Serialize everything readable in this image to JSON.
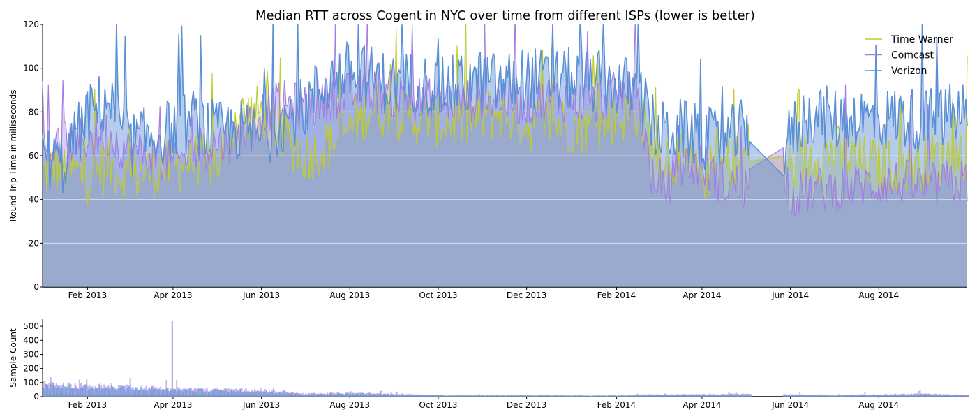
{
  "chart_data": [
    {
      "type": "area",
      "title": "Median RTT across Cogent in NYC over time from different ISPs (lower is better)",
      "xlabel": "",
      "ylabel": "Round Trip Time in milliseconds",
      "xlim": [
        "2013-01-01",
        "2014-10-01"
      ],
      "ylim": [
        0,
        120
      ],
      "x_ticks": [
        "Feb 2013",
        "Apr 2013",
        "Jun 2013",
        "Aug 2013",
        "Oct 2013",
        "Dec 2013",
        "Feb 2014",
        "Apr 2014",
        "Jun 2014",
        "Aug 2014"
      ],
      "y_ticks": [
        0,
        20,
        40,
        60,
        80,
        100,
        120
      ],
      "grid": true,
      "legend": "top-right",
      "gaps": [
        [
          "2014-05-04",
          "2014-05-27"
        ]
      ],
      "series": [
        {
          "name": "Time Warner",
          "color": "#bfcc2d",
          "x": [
            "2013-01-01",
            "2013-01-15",
            "2013-02-01",
            "2013-02-15",
            "2013-03-01",
            "2013-03-15",
            "2013-04-01",
            "2013-04-15",
            "2013-05-01",
            "2013-05-15",
            "2013-06-01",
            "2013-06-15",
            "2013-07-01",
            "2013-07-15",
            "2013-08-01",
            "2013-08-15",
            "2013-09-01",
            "2013-09-15",
            "2013-10-01",
            "2013-10-15",
            "2013-11-01",
            "2013-11-15",
            "2013-12-01",
            "2013-12-15",
            "2014-01-01",
            "2014-01-15",
            "2014-02-01",
            "2014-02-15",
            "2014-03-01",
            "2014-03-15",
            "2014-04-01",
            "2014-04-15",
            "2014-05-01",
            "2014-05-04",
            "2014-05-27",
            "2014-06-01",
            "2014-06-15",
            "2014-07-01",
            "2014-07-15",
            "2014-08-01",
            "2014-08-15",
            "2014-09-01",
            "2014-09-15",
            "2014-10-01"
          ],
          "values": [
            52,
            55,
            50,
            56,
            50,
            53,
            55,
            58,
            56,
            78,
            80,
            70,
            60,
            65,
            72,
            82,
            80,
            78,
            76,
            75,
            78,
            80,
            74,
            76,
            74,
            72,
            78,
            80,
            62,
            58,
            52,
            55,
            60,
            65,
            58,
            55,
            60,
            62,
            58,
            56,
            55,
            58,
            60,
            62
          ]
        },
        {
          "name": "Comcast",
          "color": "#a27fe0",
          "x": [
            "2013-01-01",
            "2013-01-15",
            "2013-02-01",
            "2013-02-15",
            "2013-03-01",
            "2013-03-15",
            "2013-04-01",
            "2013-04-15",
            "2013-05-01",
            "2013-05-15",
            "2013-06-01",
            "2013-06-15",
            "2013-07-01",
            "2013-07-15",
            "2013-08-01",
            "2013-08-15",
            "2013-09-01",
            "2013-09-15",
            "2013-10-01",
            "2013-10-15",
            "2013-11-01",
            "2013-11-15",
            "2013-12-01",
            "2013-12-15",
            "2014-01-01",
            "2014-01-15",
            "2014-02-01",
            "2014-02-15",
            "2014-03-01",
            "2014-03-15",
            "2014-04-01",
            "2014-04-15",
            "2014-05-01",
            "2014-05-04",
            "2014-05-27",
            "2014-06-01",
            "2014-06-15",
            "2014-07-01",
            "2014-07-15",
            "2014-08-01",
            "2014-08-15",
            "2014-09-01",
            "2014-09-15",
            "2014-10-01"
          ],
          "values": [
            62,
            66,
            68,
            70,
            62,
            60,
            56,
            62,
            66,
            68,
            80,
            84,
            82,
            86,
            88,
            90,
            88,
            86,
            86,
            85,
            87,
            86,
            84,
            86,
            86,
            84,
            88,
            88,
            38,
            55,
            56,
            48,
            46,
            48,
            58,
            42,
            44,
            45,
            46,
            47,
            48,
            46,
            47,
            48
          ]
        },
        {
          "name": "Verizon",
          "color": "#5b8fd6",
          "x": [
            "2013-01-01",
            "2013-01-15",
            "2013-02-01",
            "2013-02-15",
            "2013-03-01",
            "2013-03-15",
            "2013-04-01",
            "2013-04-15",
            "2013-05-01",
            "2013-05-15",
            "2013-06-01",
            "2013-06-15",
            "2013-07-01",
            "2013-07-15",
            "2013-08-01",
            "2013-08-15",
            "2013-09-01",
            "2013-09-15",
            "2013-10-01",
            "2013-10-15",
            "2013-11-01",
            "2013-11-15",
            "2013-12-01",
            "2013-12-15",
            "2014-01-01",
            "2014-01-15",
            "2014-02-01",
            "2014-02-15",
            "2014-03-01",
            "2014-03-15",
            "2014-04-01",
            "2014-04-15",
            "2014-05-01",
            "2014-05-04",
            "2014-05-27",
            "2014-06-01",
            "2014-06-15",
            "2014-07-01",
            "2014-07-15",
            "2014-08-01",
            "2014-08-15",
            "2014-09-01",
            "2014-09-15",
            "2014-10-01"
          ],
          "values": [
            60,
            56,
            78,
            86,
            66,
            68,
            72,
            76,
            70,
            72,
            68,
            76,
            82,
            94,
            98,
            96,
            92,
            94,
            90,
            92,
            94,
            92,
            96,
            94,
            95,
            94,
            92,
            90,
            70,
            72,
            68,
            66,
            72,
            74,
            55,
            70,
            80,
            76,
            78,
            76,
            78,
            76,
            78,
            80
          ]
        }
      ]
    },
    {
      "type": "bar",
      "title": "",
      "xlabel": "",
      "ylabel": "Sample Count",
      "xlim": [
        "2013-01-01",
        "2014-10-01"
      ],
      "ylim": [
        0,
        550
      ],
      "x_ticks": [
        "Feb 2013",
        "Apr 2013",
        "Jun 2013",
        "Aug 2013",
        "Oct 2013",
        "Dec 2013",
        "Feb 2014",
        "Apr 2014",
        "Jun 2014",
        "Aug 2014"
      ],
      "y_ticks": [
        0,
        100,
        200,
        300,
        400,
        500
      ],
      "grid": false,
      "gaps": [
        [
          "2014-05-04",
          "2014-05-27"
        ]
      ],
      "spike": {
        "x": "2013-03-31",
        "value": 535
      },
      "series": [
        {
          "name": "Time Warner",
          "color": "#bfcc2d",
          "x": [
            "2013-01-01",
            "2013-02-01",
            "2013-03-01",
            "2013-04-01",
            "2013-05-01",
            "2013-06-01",
            "2013-07-01",
            "2013-08-01",
            "2013-09-01",
            "2013-10-01",
            "2013-11-01",
            "2013-12-01",
            "2014-01-01",
            "2014-02-01",
            "2014-03-01",
            "2014-04-01",
            "2014-05-01",
            "2014-06-01",
            "2014-07-01",
            "2014-08-01",
            "2014-09-01",
            "2014-10-01"
          ],
          "values": [
            20,
            18,
            16,
            15,
            15,
            12,
            10,
            10,
            8,
            8,
            8,
            8,
            7,
            7,
            8,
            8,
            8,
            8,
            7,
            8,
            8,
            8
          ]
        },
        {
          "name": "Comcast",
          "color": "#a27fe0",
          "x": [
            "2013-01-01",
            "2013-02-01",
            "2013-03-01",
            "2013-04-01",
            "2013-05-01",
            "2013-06-01",
            "2013-07-01",
            "2013-08-01",
            "2013-09-01",
            "2013-10-01",
            "2013-11-01",
            "2013-12-01",
            "2014-01-01",
            "2014-02-01",
            "2014-03-01",
            "2014-04-01",
            "2014-05-01",
            "2014-06-01",
            "2014-07-01",
            "2014-08-01",
            "2014-09-01",
            "2014-10-01"
          ],
          "values": [
            90,
            75,
            70,
            55,
            50,
            45,
            20,
            25,
            20,
            10,
            8,
            10,
            8,
            8,
            15,
            15,
            20,
            15,
            10,
            15,
            20,
            12
          ]
        },
        {
          "name": "Verizon",
          "color": "#5b8fd6",
          "x": [
            "2013-01-01",
            "2013-02-01",
            "2013-03-01",
            "2013-04-01",
            "2013-05-01",
            "2013-06-01",
            "2013-07-01",
            "2013-08-01",
            "2013-09-01",
            "2013-10-01",
            "2013-11-01",
            "2013-12-01",
            "2014-01-01",
            "2014-02-01",
            "2014-03-01",
            "2014-04-01",
            "2014-05-01",
            "2014-06-01",
            "2014-07-01",
            "2014-08-01",
            "2014-09-01",
            "2014-10-01"
          ],
          "values": [
            80,
            65,
            60,
            50,
            45,
            40,
            18,
            22,
            18,
            10,
            8,
            9,
            7,
            7,
            12,
            13,
            18,
            12,
            8,
            13,
            18,
            10
          ]
        }
      ]
    }
  ]
}
